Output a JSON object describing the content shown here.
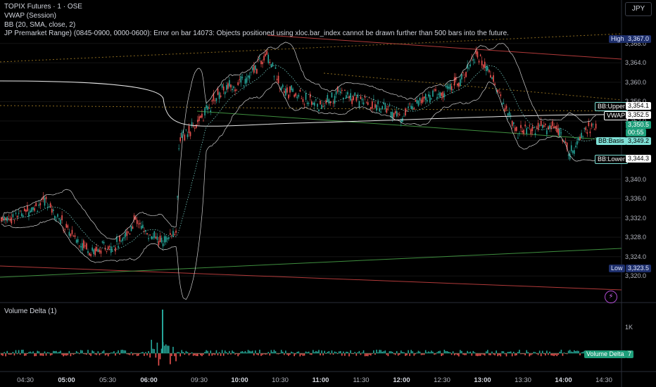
{
  "header": {
    "symbol_line": "TOPIX Futures · 1 · OSE",
    "vwap_line": "VWAP (Session)",
    "bb_line": "BB (20, SMA, close, 2)",
    "error_line": "JP Premarket Range) (0845-0900, 0000-0600): Error on bar 14073: Objects positioned using xloc.bar_index cannot be drawn further than 500 bars into the future."
  },
  "currency_button": "JPY",
  "y_axis_ticks": [
    "3,368.0",
    "3,364.0",
    "3,360.0",
    "3,356.0",
    "3,352.0",
    "3,348.0",
    "3,344.0",
    "3,340.0",
    "3,336.0",
    "3,332.0",
    "3,328.0",
    "3,324.0",
    "3,320.0"
  ],
  "price_tags": {
    "high_label": "High",
    "high_value": "3,367.0",
    "bb_upper_label": "BB:Upper",
    "bb_upper_value": "3,354.1",
    "vwap_label": "VWAP",
    "vwap_value": "3,352.5",
    "last_price": "3,350.5",
    "countdown": "00:55",
    "bb_basis_label": "BB:Basis",
    "bb_basis_value": "3,349.2",
    "bb_lower_label": "BB:Lower",
    "bb_lower_value": "3,344.3",
    "low_label": "Low",
    "low_value": "3,323.5"
  },
  "volume_pane": {
    "title": "Volume Delta (1)",
    "tick_1k": "1K",
    "tag_label": "Volume Delta",
    "tag_value": "7"
  },
  "x_axis": [
    {
      "t": "04:30",
      "bold": false
    },
    {
      "t": "05:00",
      "bold": true
    },
    {
      "t": "05:30",
      "bold": false
    },
    {
      "t": "06:00",
      "bold": true
    },
    {
      "t": "09:30",
      "bold": false
    },
    {
      "t": "10:00",
      "bold": true
    },
    {
      "t": "10:30",
      "bold": false
    },
    {
      "t": "11:00",
      "bold": true
    },
    {
      "t": "11:30",
      "bold": false
    },
    {
      "t": "12:00",
      "bold": true
    },
    {
      "t": "12:30",
      "bold": false
    },
    {
      "t": "13:00",
      "bold": true
    },
    {
      "t": "13:30",
      "bold": false
    },
    {
      "t": "14:00",
      "bold": true
    },
    {
      "t": "14:30",
      "bold": false
    }
  ],
  "colors": {
    "up": "#26a69a",
    "down": "#ef5350",
    "bg": "#000000",
    "grid": "#1a1a1a",
    "high_tag": "#1e2f6b",
    "bb_tag": "#7fe0d6"
  },
  "chart_data": {
    "type": "candlestick",
    "ylim": [
      3318,
      3370
    ],
    "anchors": [
      {
        "x": "04:20",
        "y": 3332
      },
      {
        "x": "04:45",
        "y": 3335.5
      },
      {
        "x": "05:05",
        "y": 3328
      },
      {
        "x": "05:20",
        "y": 3325
      },
      {
        "x": "05:40",
        "y": 3327
      },
      {
        "x": "05:50",
        "y": 3331.5
      },
      {
        "x": "06:00",
        "y": 3328.5
      },
      {
        "x": "06:10",
        "y": 3327
      },
      {
        "x": "06:20",
        "y": 3329
      },
      {
        "x": "09:15",
        "y": 3348
      },
      {
        "x": "09:30",
        "y": 3352
      },
      {
        "x": "09:45",
        "y": 3358
      },
      {
        "x": "10:00",
        "y": 3360
      },
      {
        "x": "10:10",
        "y": 3362
      },
      {
        "x": "10:20",
        "y": 3366.5
      },
      {
        "x": "10:30",
        "y": 3359
      },
      {
        "x": "10:45",
        "y": 3357
      },
      {
        "x": "11:00",
        "y": 3355
      },
      {
        "x": "11:15",
        "y": 3358
      },
      {
        "x": "11:30",
        "y": 3356
      },
      {
        "x": "11:45",
        "y": 3355
      },
      {
        "x": "12:00",
        "y": 3353
      },
      {
        "x": "12:15",
        "y": 3357
      },
      {
        "x": "12:30",
        "y": 3357.5
      },
      {
        "x": "12:45",
        "y": 3361
      },
      {
        "x": "12:55",
        "y": 3366
      },
      {
        "x": "13:05",
        "y": 3362
      },
      {
        "x": "13:15",
        "y": 3356
      },
      {
        "x": "13:25",
        "y": 3350
      },
      {
        "x": "13:40",
        "y": 3350.5
      },
      {
        "x": "13:55",
        "y": 3351
      },
      {
        "x": "14:05",
        "y": 3345
      },
      {
        "x": "14:15",
        "y": 3350.5
      }
    ],
    "session_high": 3367.0,
    "session_low": 3323.5,
    "last": 3350.5
  }
}
